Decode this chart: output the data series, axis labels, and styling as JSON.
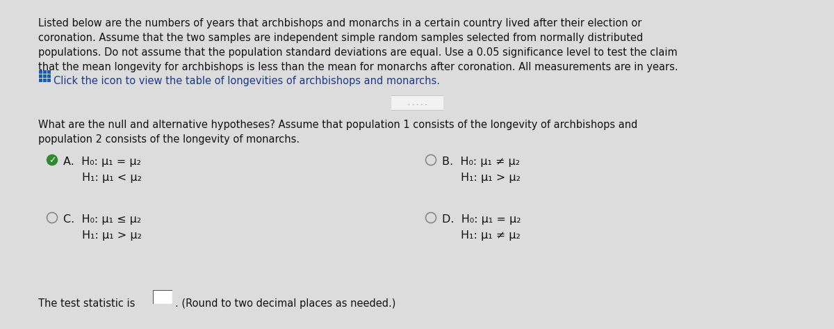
{
  "bg_color": "#dcdcdc",
  "text_color": "#111111",
  "paragraph1_lines": [
    "Listed below are the numbers of years that archbishops and monarchs in a certain country lived after their election or",
    "coronation. Assume that the two samples are independent simple random samples selected from normally distributed",
    "populations. Do not assume that the population standard deviations are equal. Use a 0.05 significance level to test the claim",
    "that the mean longevity for archbishops is less than the mean for monarchs after coronation. All measurements are in years."
  ],
  "click_text": "Click the icon to view the table of longevities of archbishops and monarchs.",
  "question_text_lines": [
    "What are the null and alternative hypotheses? Assume that population 1 consists of the longevity of archbishops and",
    "population 2 consists of the longevity of monarchs."
  ],
  "option_A_line1": "H₀: μ₁ = μ₂",
  "option_A_line2": "H₁: μ₁ < μ₂",
  "option_B_line1": "H₀: μ₁ ≠ μ₂",
  "option_B_line2": "H₁: μ₁ > μ₂",
  "option_C_line1": "H₀: μ₁ ≤ μ₂",
  "option_C_line2": "H₁: μ₁ > μ₂",
  "option_D_line1": "H₀: μ₁ = μ₂",
  "option_D_line2": "H₁: μ₁ ≠ μ₂",
  "bottom_text": "The test statistic is",
  "bottom_text2": ". (Round to two decimal places as needed.)",
  "icon_color": "#1a5cb5",
  "click_text_color": "#1a3a8a",
  "label_A": "A.",
  "label_B": "B.",
  "label_C": "C.",
  "label_D": "D."
}
